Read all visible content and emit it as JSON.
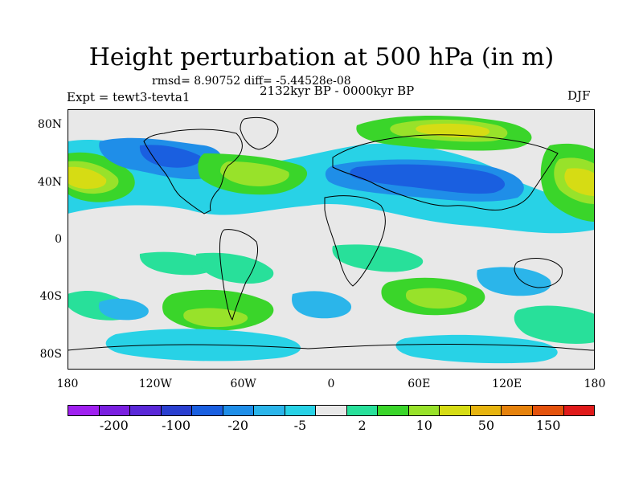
{
  "title": "Height perturbation at 500 hPa (in m)",
  "stats": "rmsd= 8.90752 diff= -5.44528e-08",
  "experiment": "Expt = tewt3-tevta1",
  "period": "2132kyr BP - 0000kyr BP",
  "season": "DJF",
  "map": {
    "projection": "cylindrical equidistant",
    "lat_range": [
      -90,
      90
    ],
    "lon_range": [
      -180,
      180
    ],
    "lat_ticks": [
      "80N",
      "40N",
      "0",
      "40S",
      "80S"
    ],
    "lon_ticks": [
      "180",
      "120W",
      "60W",
      "0",
      "60E",
      "120E",
      "180"
    ]
  },
  "colorbar": {
    "colors": [
      "#a020f0",
      "#7a1fe0",
      "#5a28d8",
      "#2a3fd0",
      "#1a5fe0",
      "#1f8ee8",
      "#2bb5ea",
      "#28d2e6",
      "#e8e8e8",
      "#28e09a",
      "#3ad52a",
      "#98e22a",
      "#d6dc14",
      "#e7b40f",
      "#e6820c",
      "#e4520c",
      "#e01a1a"
    ],
    "labels": [
      "-200",
      "-100",
      "-20",
      "-5",
      "2",
      "10",
      "50",
      "150"
    ]
  }
}
